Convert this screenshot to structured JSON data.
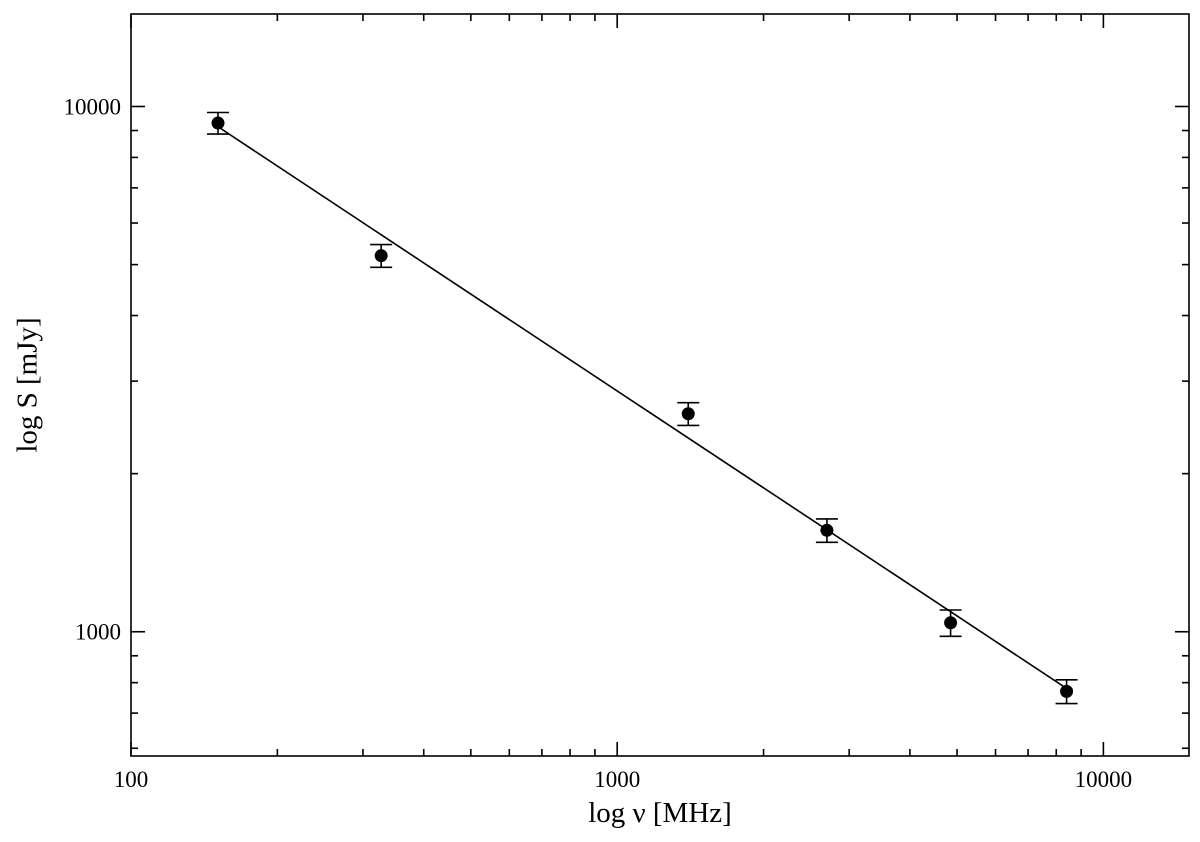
{
  "chart_data": {
    "type": "scatter",
    "title": "",
    "xlabel": "log ν  [MHz]",
    "ylabel": "log S [mJy]",
    "xscale": "log",
    "yscale": "log",
    "xlim": [
      100,
      15000
    ],
    "ylim": [
      580,
      15000
    ],
    "x_ticks": [
      100,
      1000,
      10000
    ],
    "x_tick_labels": [
      "100",
      "1000",
      "10000"
    ],
    "y_ticks": [
      1000,
      10000
    ],
    "y_tick_labels": [
      "1000",
      "10000"
    ],
    "grid": false,
    "legend": "none",
    "series": [
      {
        "x": [
          151,
          327,
          1400,
          2700,
          4850,
          8400
        ],
        "y": [
          9300,
          5200,
          2600,
          1560,
          1040,
          770
        ],
        "yerr": [
          440,
          260,
          130,
          80,
          60,
          40
        ],
        "fit": {
          "x": [
            151,
            8400
          ],
          "y": [
            9150,
            780
          ]
        }
      }
    ]
  }
}
